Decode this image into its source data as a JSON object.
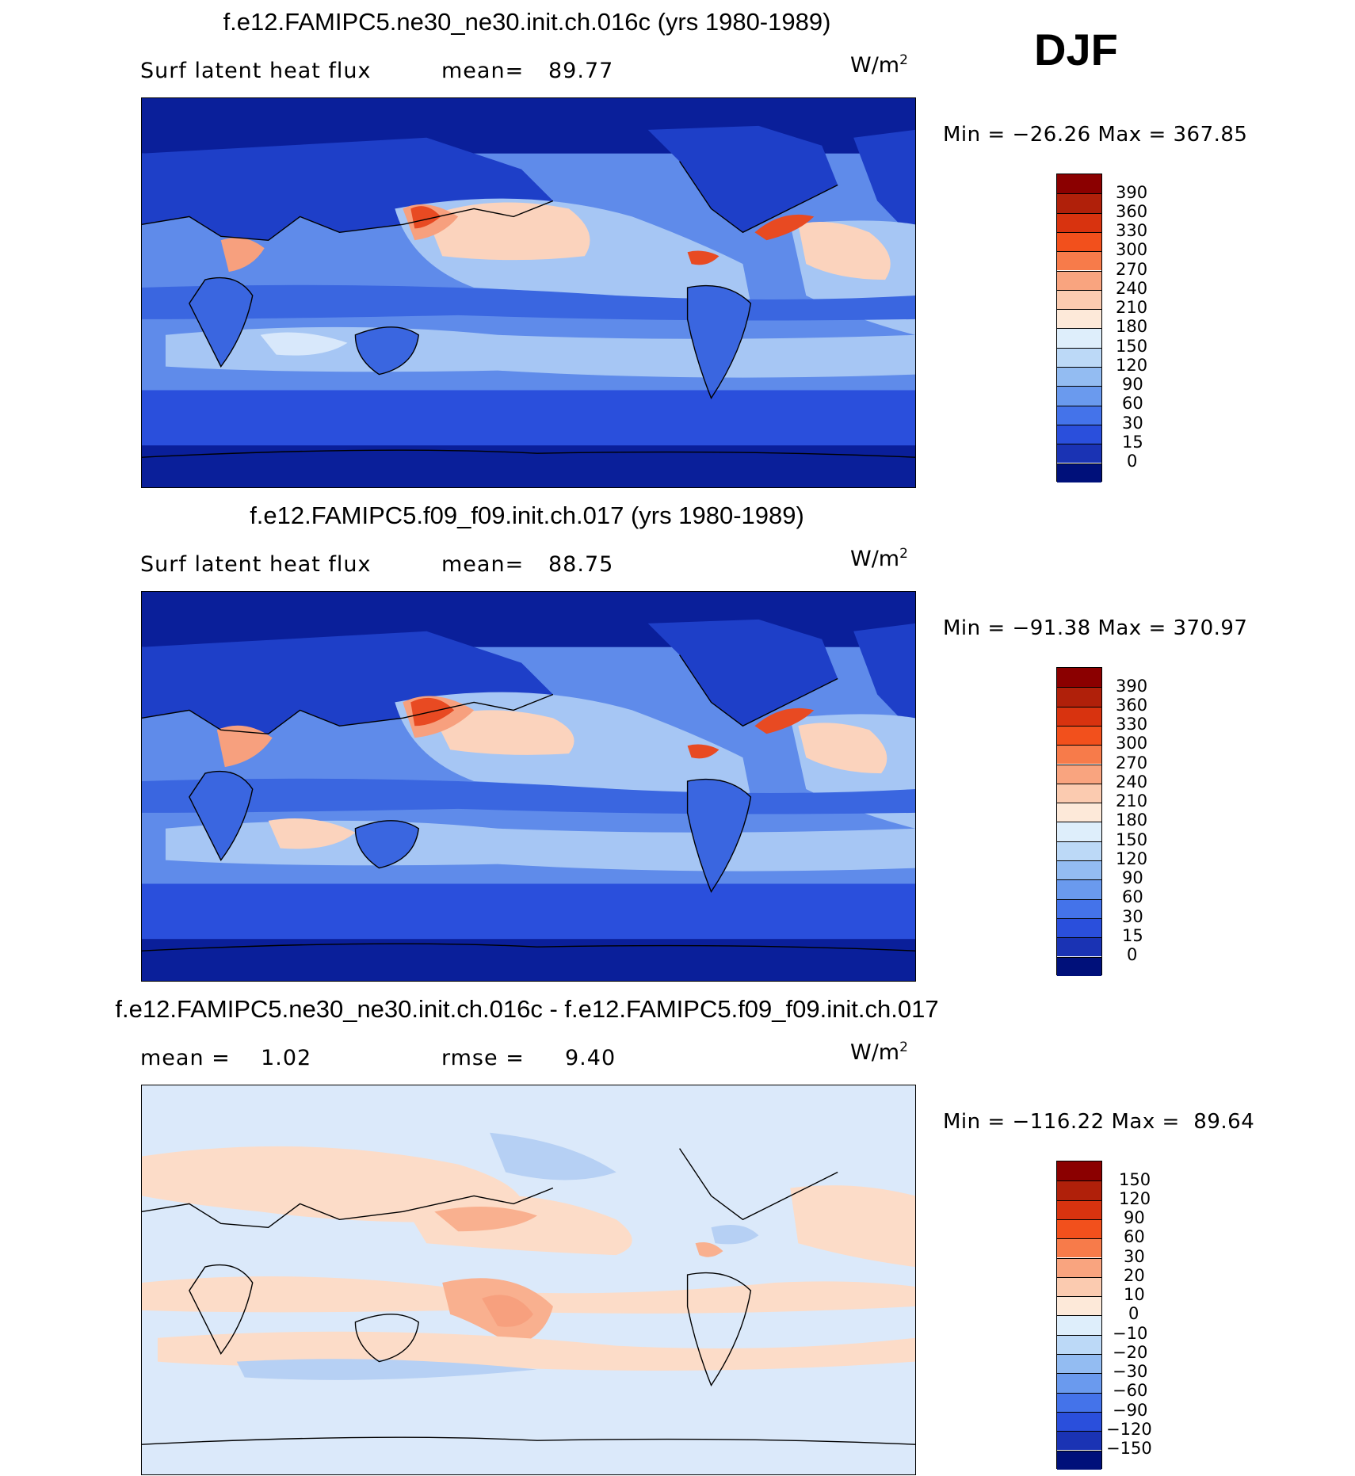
{
  "season": "DJF",
  "panels": [
    {
      "title": "f.e12.FAMIPC5.ne30_ne30.init.ch.016c (yrs 1980-1989)",
      "left_label": "Surf latent heat flux",
      "stat_label": "mean=",
      "stat_value": "89.77",
      "units": "W/m",
      "units_sup": "2",
      "minmax": "Min = −26.26 Max = 367.85"
    },
    {
      "title": "f.e12.FAMIPC5.f09_f09.init.ch.017 (yrs 1980-1989)",
      "left_label": "Surf latent heat flux",
      "stat_label": "mean=",
      "stat_value": "88.75",
      "units": "W/m",
      "units_sup": "2",
      "minmax": "Min = −91.38 Max = 370.97"
    },
    {
      "title": "f.e12.FAMIPC5.ne30_ne30.init.ch.016c - f.e12.FAMIPC5.f09_f09.init.ch.017",
      "left_label": "mean =    1.02",
      "stat_label": "rmse =",
      "stat_value": "9.40",
      "units": "W/m",
      "units_sup": "2",
      "minmax": "Min = −116.22 Max =  89.64"
    }
  ],
  "colorbars": {
    "abs": {
      "labels": [
        "390",
        "360",
        "330",
        "300",
        "270",
        "240",
        "210",
        "180",
        "150",
        "120",
        "90",
        "60",
        "30",
        "15",
        "0"
      ],
      "colors": [
        "#8b0000",
        "#b0200a",
        "#d8330f",
        "#f2501c",
        "#f77b4a",
        "#f9a47f",
        "#fbcbb0",
        "#fde9d9",
        "#deeefb",
        "#bcd9f7",
        "#93bcf2",
        "#6a9aee",
        "#4473ea",
        "#2a4fdc",
        "#1a33b4",
        "#00107a"
      ]
    },
    "diff": {
      "labels": [
        "150",
        "120",
        "90",
        "60",
        "30",
        "20",
        "10",
        "0",
        "−10",
        "−20",
        "−30",
        "−60",
        "−90",
        "−120",
        "−150"
      ],
      "colors": [
        "#8b0000",
        "#b0200a",
        "#d8330f",
        "#f2501c",
        "#f77b4a",
        "#f9a47f",
        "#fbcbb0",
        "#fde9d9",
        "#deeefb",
        "#bcd9f7",
        "#93bcf2",
        "#6a9aee",
        "#4473ea",
        "#2a4fdc",
        "#1a33b4",
        "#00107a"
      ]
    }
  },
  "map_colors": {
    "polar": "#0a1f9a",
    "land_dark": "#1e3fc8",
    "land": "#3a66e0",
    "ocean_mid": "#5f8bea",
    "ocean_light": "#a6c6f4",
    "ocean_pale": "#d8e8fb",
    "warm_light": "#fbd3bd",
    "warm": "#f7a07e",
    "hot": "#e84a22",
    "diff_bg": "#dbe9fa",
    "diff_pos": "#fcdcc8",
    "diff_pos2": "#f9b08f",
    "diff_neg": "#b6d0f4",
    "coast": "#000000"
  }
}
